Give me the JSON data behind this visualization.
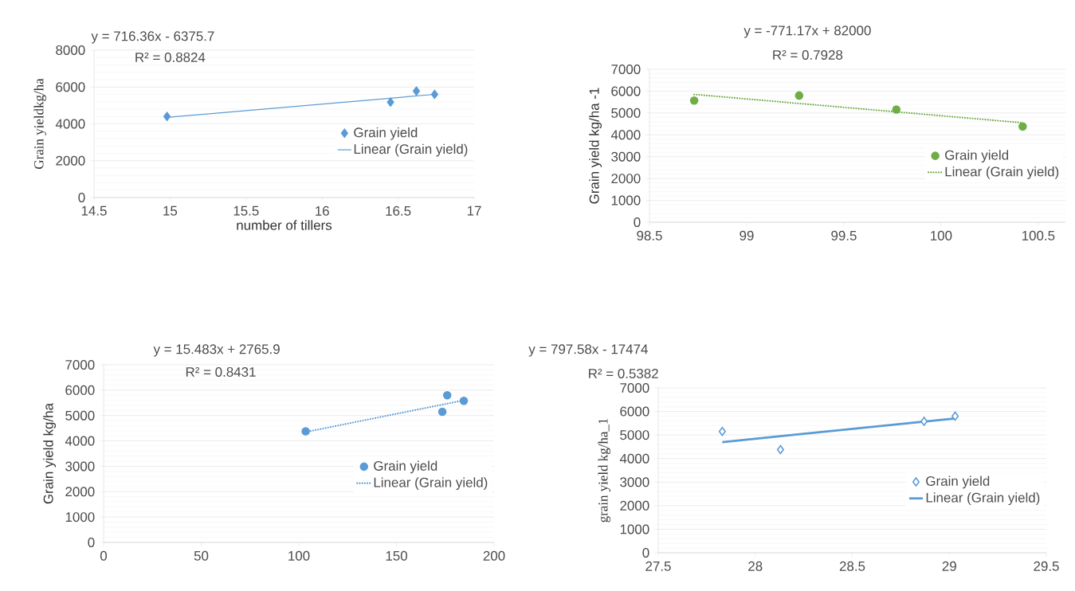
{
  "chart_data": [
    {
      "type": "scatter",
      "ylabel": "Grain yieldkg/ha",
      "xlabel": "number of tillers",
      "annotations": [
        "y = 716.36x - 6375.7",
        "R² = 0.8824"
      ],
      "xlim": [
        14.5,
        17
      ],
      "xticks": [
        14.5,
        15,
        15.5,
        16,
        16.5,
        17
      ],
      "ylim": [
        0,
        8000
      ],
      "yticks": [
        0,
        2000,
        4000,
        6000,
        8000
      ],
      "grid": "y",
      "legend": "right",
      "marker": "diamond",
      "series": [
        {
          "name": "Grain yield",
          "color": "#5b9bd5",
          "x": [
            14.98,
            16.45,
            16.62,
            16.74
          ],
          "values": [
            4400,
            5180,
            5780,
            5600
          ]
        },
        {
          "name": "Linear (Grain yield)",
          "type": "line",
          "marker": "none",
          "line_style": "solid",
          "color": "#5b9bd5",
          "x": [
            14.98,
            16.74
          ],
          "values": [
            4350,
            5600
          ]
        }
      ]
    },
    {
      "type": "scatter",
      "ylabel": "Grain yield kg/ha -1",
      "annotations": [
        "y = -771.17x + 82000",
        "R² = 0.7928"
      ],
      "xlim": [
        98.5,
        100.64
      ],
      "xticks": [
        98.5,
        99,
        99.5,
        100,
        100.5
      ],
      "ylim": [
        0,
        7000
      ],
      "yticks": [
        0,
        1000,
        2000,
        3000,
        4000,
        5000,
        6000,
        7000
      ],
      "grid": "y",
      "legend": "right",
      "marker": "circle",
      "series": [
        {
          "name": "Grain yield",
          "color": "#70ad47",
          "x": [
            98.73,
            99.27,
            99.77,
            100.42
          ],
          "values": [
            5570,
            5800,
            5160,
            4380
          ]
        },
        {
          "name": "Linear (Grain yield)",
          "type": "line",
          "marker": "none",
          "line_style": "dotted",
          "color": "#70ad47",
          "x": [
            98.73,
            100.42
          ],
          "values": [
            5850,
            4550
          ]
        }
      ]
    },
    {
      "type": "scatter",
      "ylabel": "Grain yield kg/ha",
      "annotations": [
        "y = 15.483x + 2765.9",
        "R² = 0.8431"
      ],
      "xlim": [
        0,
        200
      ],
      "xticks": [
        0,
        50,
        100,
        150,
        200
      ],
      "ylim": [
        0,
        7000
      ],
      "yticks": [
        0,
        1000,
        2000,
        3000,
        4000,
        5000,
        6000,
        7000
      ],
      "grid": "y",
      "legend": "right",
      "marker": "circle",
      "series": [
        {
          "name": "Grain yield",
          "color": "#5b9bd5",
          "x": [
            103.5,
            173.5,
            176,
            184.5
          ],
          "values": [
            4380,
            5150,
            5800,
            5580
          ]
        },
        {
          "name": "Linear (Grain yield)",
          "type": "line",
          "marker": "none",
          "line_style": "dotted",
          "color": "#5b9bd5",
          "x": [
            103.5,
            184.5
          ],
          "values": [
            4350,
            5600
          ]
        }
      ]
    },
    {
      "type": "scatter",
      "ylabel": "grain yield kg/ha_1",
      "annotations": [
        "y = 797.58x - 17474",
        "R² = 0.5382"
      ],
      "xlim": [
        27.5,
        29.5
      ],
      "xticks": [
        27.5,
        28,
        28.5,
        29,
        29.5
      ],
      "ylim": [
        0,
        7000
      ],
      "yticks": [
        0,
        1000,
        2000,
        3000,
        4000,
        5000,
        6000,
        7000
      ],
      "grid": "y",
      "legend": "right",
      "marker": "diamond",
      "series": [
        {
          "name": "Grain yield",
          "color": "#5b9bd5",
          "x": [
            27.83,
            28.13,
            28.87,
            29.03
          ],
          "values": [
            5150,
            4380,
            5580,
            5800
          ]
        },
        {
          "name": "Linear (Grain yield)",
          "type": "line",
          "marker": "none",
          "line_style": "solid",
          "color": "#5b9bd5",
          "x": [
            27.83,
            29.03
          ],
          "values": [
            4700,
            5700
          ]
        }
      ]
    }
  ]
}
